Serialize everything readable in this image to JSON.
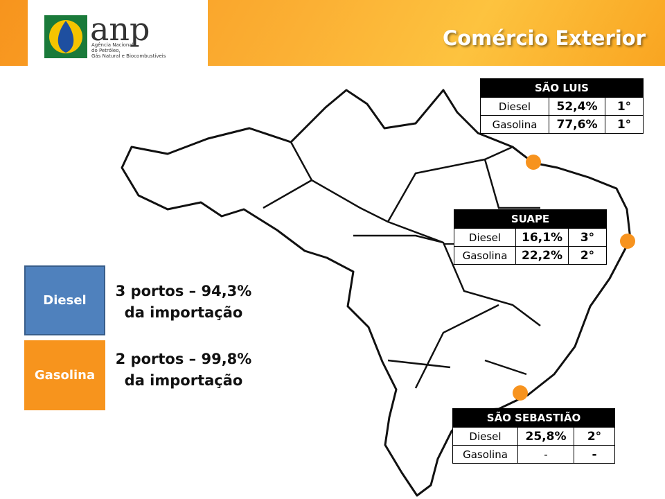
{
  "header": {
    "logo": "anp",
    "logo_subtitle": [
      "Agência Nacional",
      "do Petróleo,",
      "Gás Natural e Biocombustíveis"
    ],
    "title": "Comércio Exterior"
  },
  "ports": [
    {
      "name": "SÃO LUIS",
      "rows": [
        [
          "Diesel",
          "52,4%",
          "1°"
        ],
        [
          "Gasolina",
          "77,6%",
          "1°"
        ]
      ]
    },
    {
      "name": "SUAPE",
      "rows": [
        [
          "Diesel",
          "16,1%",
          "3°"
        ],
        [
          "Gasolina",
          "22,2%",
          "2°"
        ]
      ]
    },
    {
      "name": "SÃO SEBASTIÃO",
      "rows": [
        [
          "Diesel",
          "25,8%",
          "2°"
        ],
        [
          "Gasolina",
          "-",
          "-"
        ]
      ]
    }
  ],
  "legend": [
    {
      "label": "Diesel",
      "text": [
        "3 portos – 94,3%",
        "da importação"
      ]
    },
    {
      "label": "Gasolina",
      "text": [
        "2 portos – 99,8%",
        "da importação"
      ]
    }
  ]
}
